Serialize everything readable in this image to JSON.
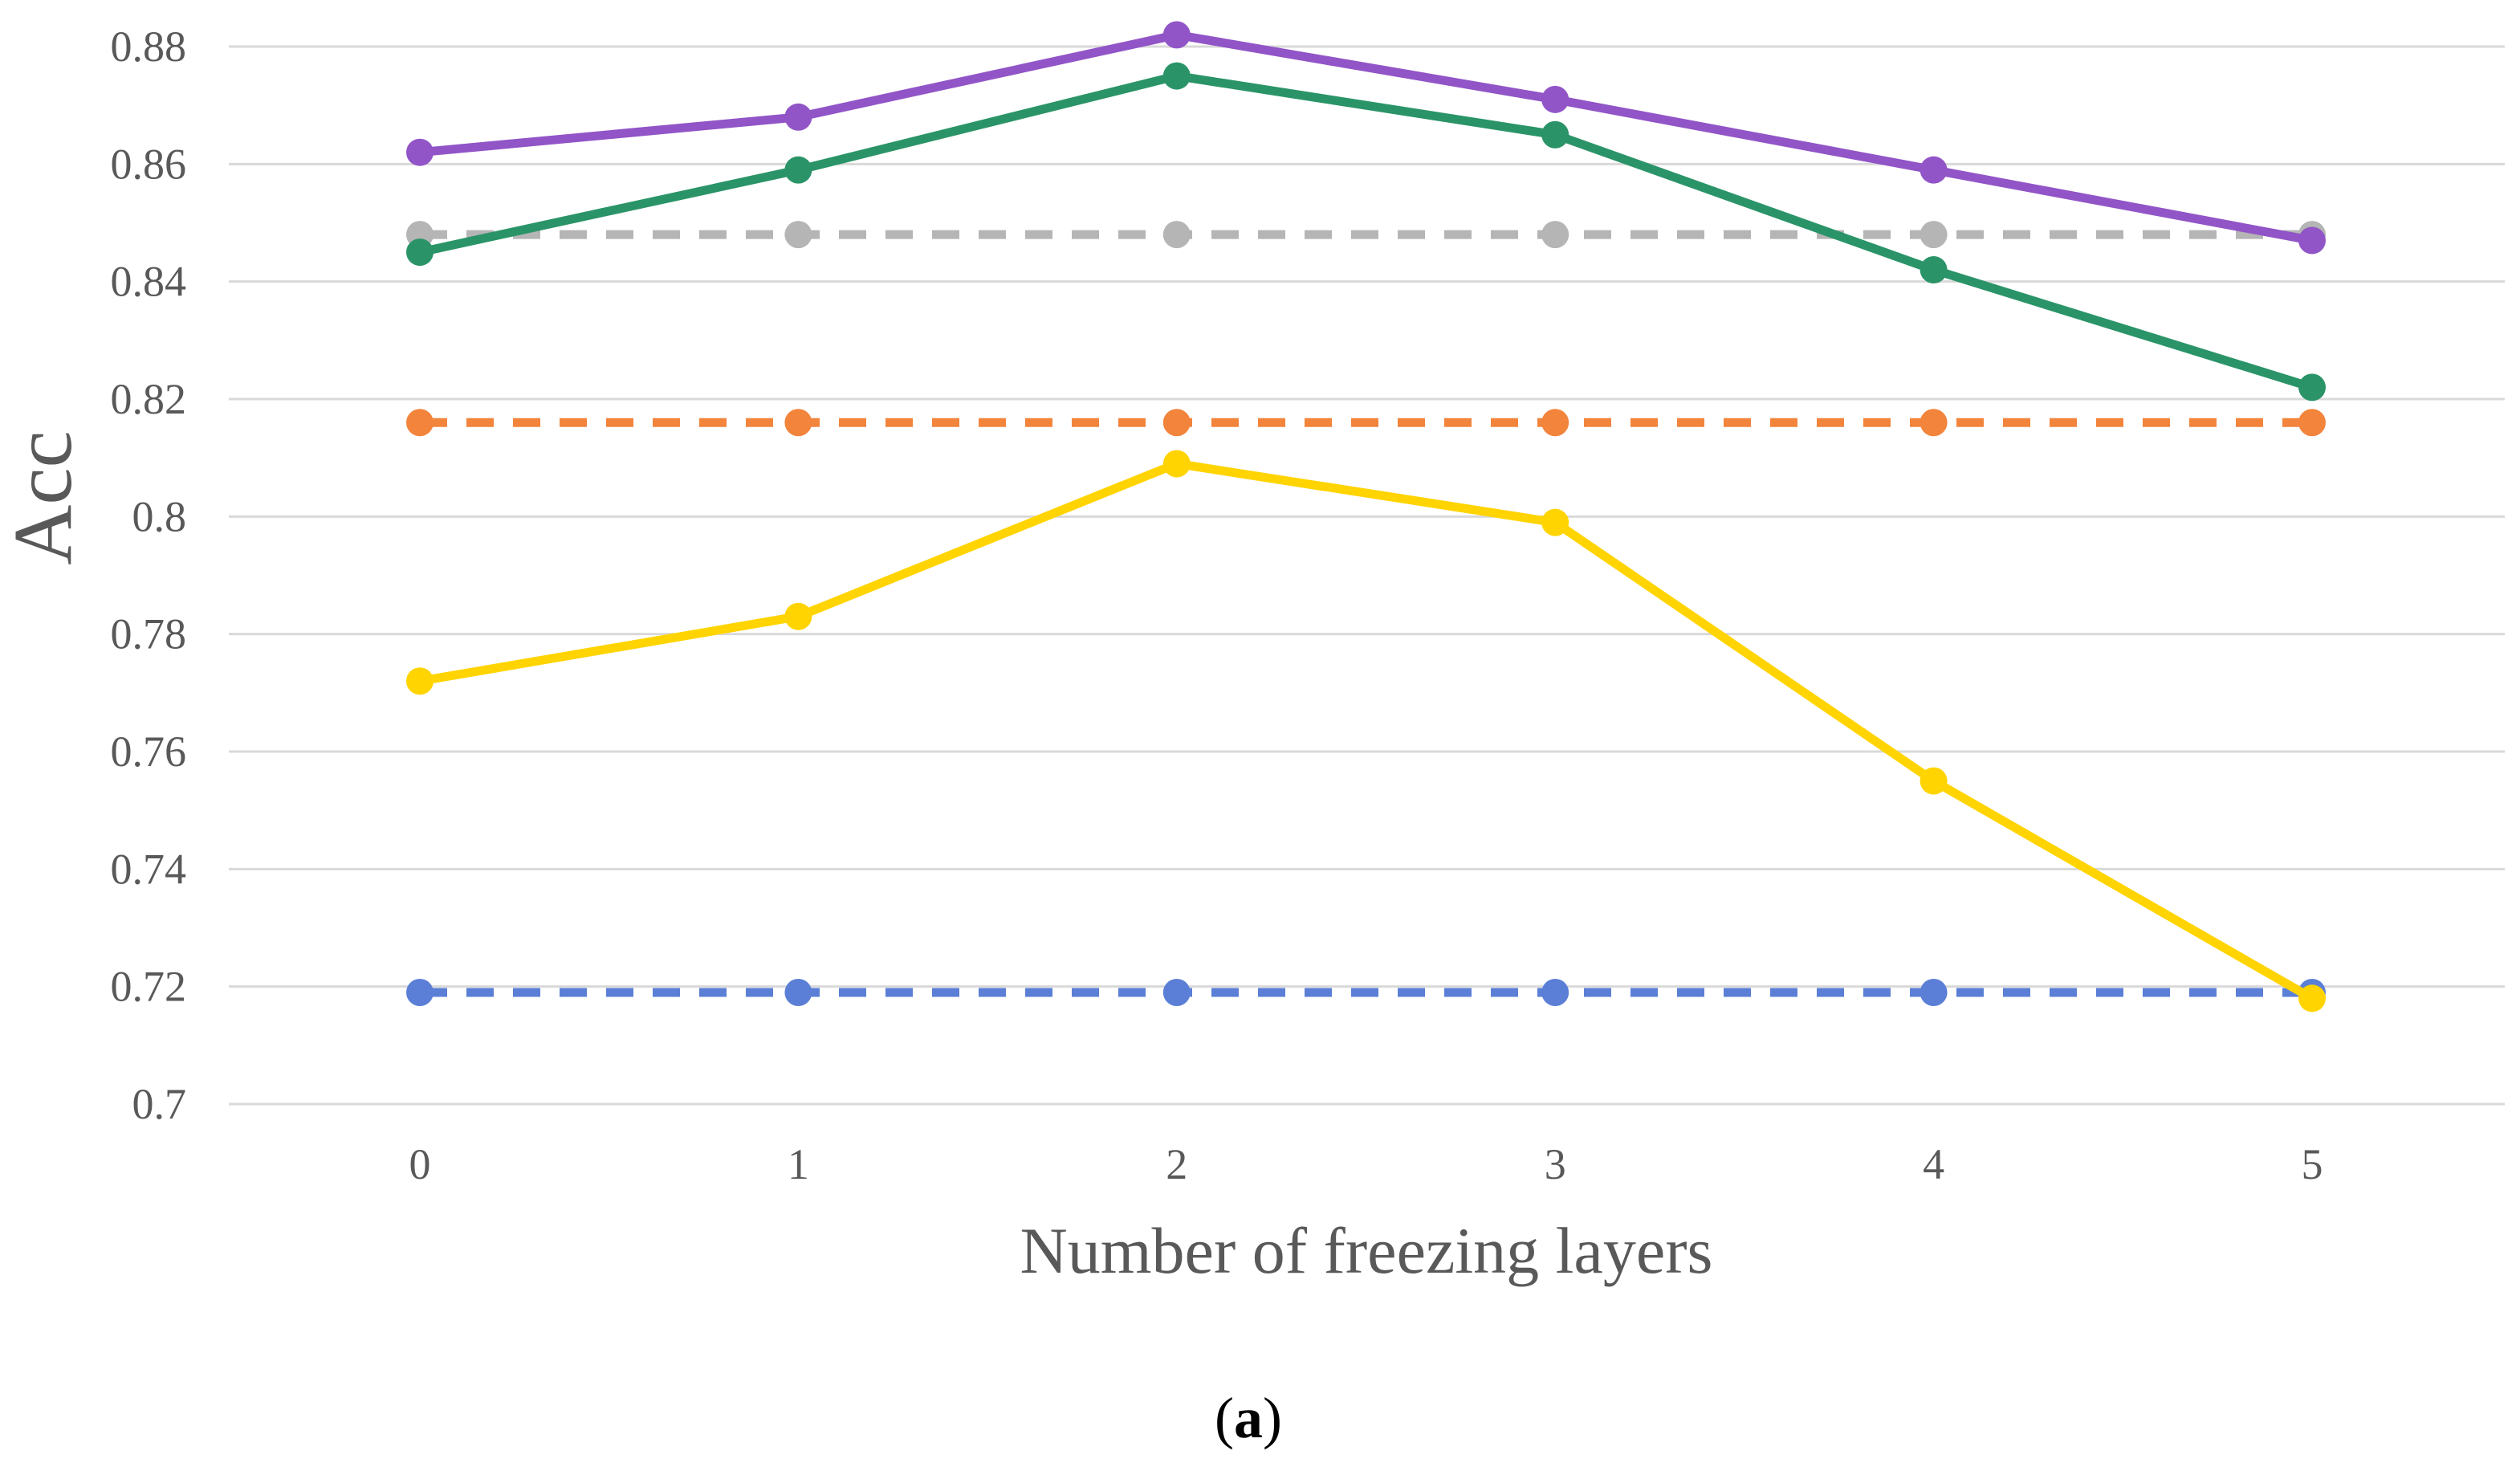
{
  "chart_data": {
    "type": "line",
    "title": "",
    "xlabel": "Number of freezing layers",
    "ylabel": "Acc",
    "caption_prefix": "(",
    "caption_letter": "a",
    "caption_suffix": ")",
    "x": [
      0,
      1,
      2,
      3,
      4,
      5
    ],
    "x_tick_labels": [
      "0",
      "1",
      "2",
      "3",
      "4",
      "5"
    ],
    "ylim": [
      0.7,
      0.88
    ],
    "y_ticks": [
      0.7,
      0.72,
      0.74,
      0.76,
      0.78,
      0.8,
      0.82,
      0.84,
      0.86,
      0.88
    ],
    "y_tick_labels": [
      "0.7",
      "0.72",
      "0.74",
      "0.76",
      "0.78",
      "0.8",
      "0.82",
      "0.84",
      "0.86",
      "0.88"
    ],
    "grid": "horizontal",
    "legend": "none",
    "series": [
      {
        "values": [
          0.719,
          0.719,
          0.719,
          0.719,
          0.719,
          0.719
        ],
        "color": "#5B7FD6",
        "dashed": true
      },
      {
        "values": [
          0.848,
          0.848,
          0.848,
          0.848,
          0.848,
          0.848
        ],
        "color": "#B5B5B5",
        "dashed": true
      },
      {
        "values": [
          0.816,
          0.816,
          0.816,
          0.816,
          0.816,
          0.816
        ],
        "color": "#F2843C",
        "dashed": true
      },
      {
        "values": [
          0.772,
          0.783,
          0.809,
          0.799,
          0.755,
          0.718
        ],
        "color": "#FFD400",
        "dashed": false
      },
      {
        "values": [
          0.845,
          0.859,
          0.875,
          0.865,
          0.842,
          0.822
        ],
        "color": "#2A9468",
        "dashed": false
      },
      {
        "values": [
          0.862,
          0.868,
          0.882,
          0.871,
          0.859,
          0.847
        ],
        "color": "#9155C7",
        "dashed": false
      }
    ]
  }
}
